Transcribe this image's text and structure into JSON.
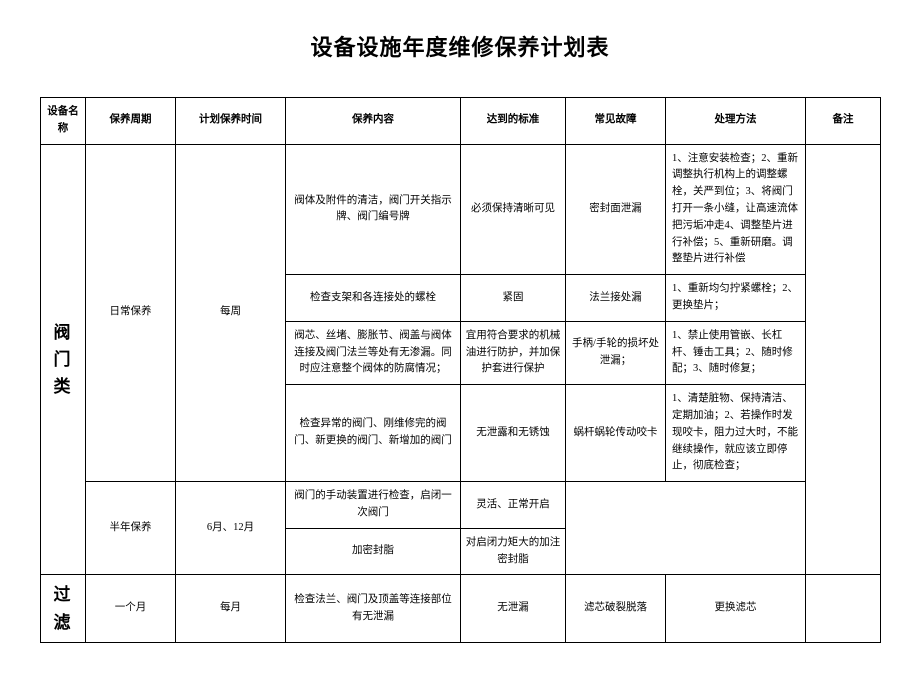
{
  "title": "设备设施年度维修保养计划表",
  "headers": {
    "device": "设备名称",
    "cycle": "保养周期",
    "plan": "计划保养时间",
    "content": "保养内容",
    "standard": "达到的标准",
    "fault": "常见故障",
    "method": "处理方法",
    "remark": "备注"
  },
  "devices": {
    "valve": {
      "name": "阀门类",
      "rows": [
        {
          "cycle": "日常保养",
          "plan": "每周",
          "content": "阀体及附件的清洁，阀门开关指示牌、阀门编号牌",
          "standard": "必须保持清晰可见",
          "fault": "密封面泄漏",
          "method": "1、注意安装检查；2、重新调整执行机构上的调整螺栓，关严到位；3、将阀门打开一条小缝，让高速流体把污垢冲走4、调整垫片进行补偿；5、重新研磨。调整垫片进行补偿"
        },
        {
          "content": "检查支架和各连接处的螺栓",
          "standard": "紧固",
          "fault": "法兰接处漏",
          "method": "1、重新均匀拧紧螺栓；2、更换垫片；"
        },
        {
          "content": "阀芯、丝堵、膨胀节、阀盖与阀体连接及阀门法兰等处有无渗漏。同时应注意整个阀体的防腐情况；",
          "standard": "宜用符合要求的机械油进行防护，并加保护套进行保护",
          "fault": "手柄/手轮的损坏处泄漏；",
          "method": "1、禁止使用管嵌、长杠杆、锤击工具；2、随时修配；3、随时修复；"
        },
        {
          "content": "检查异常的阀门、刚维修完的阀门、新更换的阀门、新增加的阀门",
          "standard": "无泄露和无锈蚀",
          "fault": "蜗杆蜗轮传动咬卡",
          "method": "1、清楚脏物、保持清洁、定期加油；2、若操作时发现咬卡，阻力过大时，不能继续操作，就应该立即停止，彻底检查；"
        },
        {
          "cycle": "半年保养",
          "plan": "6月、12月",
          "content": "阀门的手动装置进行检查，启闭一次阀门",
          "standard": "灵活、正常开启"
        },
        {
          "content": "加密封脂",
          "standard": "对启闭力矩大的加注密封脂"
        }
      ]
    },
    "filter": {
      "name": "过滤",
      "rows": [
        {
          "cycle": "一个月",
          "plan": "每月",
          "content": "检查法兰、阀门及顶盖等连接部位有无泄漏",
          "standard": "无泄漏",
          "fault": "滤芯破裂脱落",
          "method": "更换滤芯"
        }
      ]
    }
  }
}
